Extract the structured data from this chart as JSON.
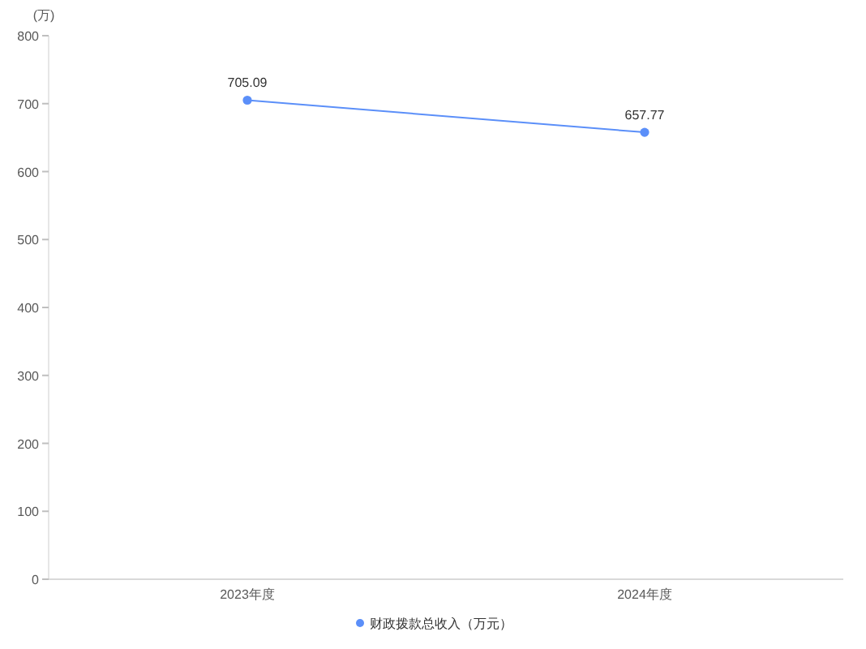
{
  "chart_data": {
    "type": "line",
    "ylabel": "(万)",
    "categories": [
      "2023年度",
      "2024年度"
    ],
    "series": [
      {
        "name": "财政拨款总收入（万元）",
        "color": "#5b8ff9",
        "values": [
          705.09,
          657.77
        ]
      }
    ],
    "ylim": [
      0,
      800
    ],
    "yticks": [
      0,
      100,
      200,
      300,
      400,
      500,
      600,
      700,
      800
    ],
    "data_labels": true,
    "legend": "bottom",
    "marker": "circle",
    "grid": false
  }
}
